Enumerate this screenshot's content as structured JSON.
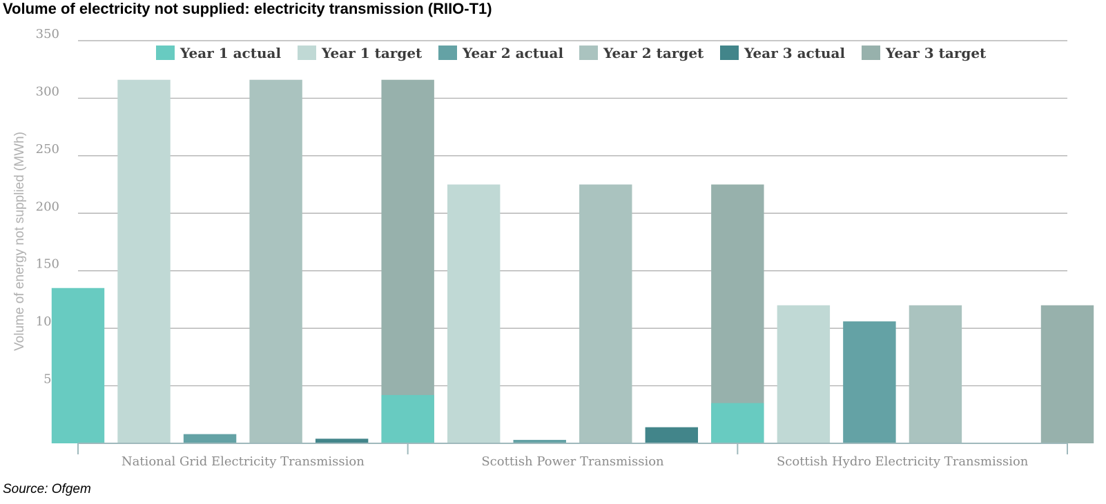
{
  "title": "Volume of electricity not supplied: electricity transmission (RIIO-T1)",
  "source": "Source: Ofgem",
  "chart_data": {
    "type": "bar",
    "title": "Volume of electricity not supplied: electricity transmission (RIIO-T1)",
    "xlabel": "",
    "ylabel": "Volume of energy not supplied (MWh)",
    "ylim": [
      0,
      350
    ],
    "yticks": [
      0,
      50,
      100,
      150,
      200,
      250,
      300,
      350
    ],
    "grid": true,
    "legend_position": "top",
    "categories": [
      "National Grid Electricity Transmission",
      "Scottish Power Transmission",
      "Scottish Hydro Electricity Transmission"
    ],
    "series": [
      {
        "name": "Year 1 actual",
        "color": "#68cbc1",
        "values": [
          135,
          42,
          35
        ]
      },
      {
        "name": "Year 1 target",
        "color": "#c0d9d5",
        "values": [
          316,
          225,
          120
        ]
      },
      {
        "name": "Year 2 actual",
        "color": "#64a2a5",
        "values": [
          8,
          3,
          106
        ]
      },
      {
        "name": "Year 2 target",
        "color": "#aac3bf",
        "values": [
          316,
          225,
          120
        ]
      },
      {
        "name": "Year 3 actual",
        "color": "#42858a",
        "values": [
          4,
          14,
          0
        ]
      },
      {
        "name": "Year 3 target",
        "color": "#97b1ac",
        "values": [
          316,
          225,
          120
        ]
      }
    ]
  }
}
